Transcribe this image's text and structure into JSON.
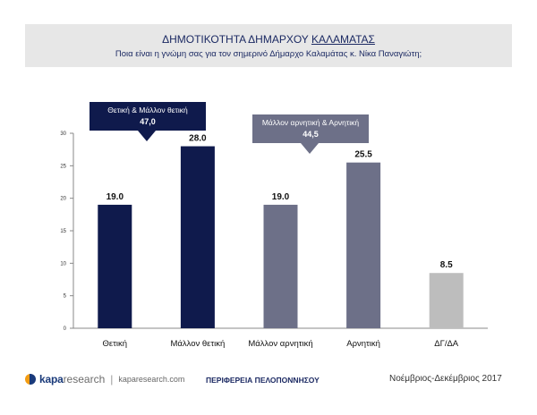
{
  "header": {
    "title_prefix": "ΔΗΜΟΤΙΚΟΤΗΤΑ ΔΗΜΑΡΧΟΥ",
    "title_city": "ΚΑΛΑΜΑΤΑΣ",
    "subtitle": "Ποια είναι η γνώμη σας για τον σημερινό Δήμαρχο Καλαμάτας κ. Νίκα Παναγιώτη;"
  },
  "chart_data": {
    "type": "bar",
    "categories": [
      "Θετική",
      "Μάλλον θετική",
      "Μάλλον αρνητική",
      "Αρνητική",
      "ΔΓ/ΔΑ"
    ],
    "values": [
      19.0,
      28.0,
      19.0,
      25.5,
      8.5
    ],
    "value_labels": [
      "19.0",
      "28.0",
      "19.0",
      "25.5",
      "8.5"
    ],
    "ylim": [
      0,
      30
    ],
    "yticks": [
      0,
      5,
      10,
      15,
      20,
      25,
      30
    ],
    "bar_colors": [
      "#0f1a4c",
      "#0f1a4c",
      "#6d7088",
      "#6d7088",
      "#bdbdbd"
    ],
    "grid": false,
    "callouts": [
      {
        "label": "Θετική & Μάλλον θετική",
        "value": "47,0",
        "color": "#0f1a4c"
      },
      {
        "label": "Μάλλον αρνητική & Αρνητική",
        "value": "44,5",
        "color": "#6d7088"
      }
    ]
  },
  "footer": {
    "logo_kapa": "kapa",
    "logo_research": "research",
    "logo_separator": "|",
    "logo_url": "kaparesearch.com",
    "region": "ΠΕΡΙΦΕΡΕΙΑ ΠΕΛΟΠΟΝΝΗΣΟΥ",
    "date": "Νοέμβριος-Δεκέμβριος 2017"
  }
}
